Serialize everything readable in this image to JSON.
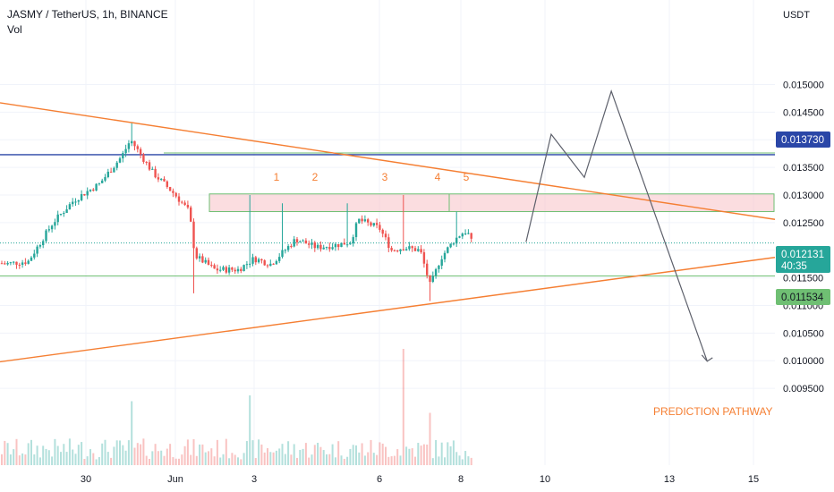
{
  "legend": {
    "symbol": "JASMY / TetherUS, 1h, BINANCE",
    "volume": "Vol"
  },
  "axis": {
    "currency": "USDT"
  },
  "badges": {
    "resistance": "0.013730",
    "last_price": "0.012131",
    "countdown": "40:35",
    "support": "0.011534"
  },
  "annotations": {
    "touches": [
      "1",
      "2",
      "3",
      "4",
      "5"
    ],
    "prediction_label": "PREDICTION PATHWAY"
  },
  "colors": {
    "up": "#26a69a",
    "down": "#ef5350",
    "trendline": "#f57f33",
    "resistance": "#2a46a7",
    "support": "#6fbf73",
    "zone": "#f8c7cb",
    "path": "#5d606b",
    "annotation": "#f57f33"
  },
  "chart_data": {
    "type": "candlestick",
    "title": "JASMY / TetherUS, 1h, BINANCE",
    "y_unit": "USDT",
    "y_ticks": [
      "0.015000",
      "0.014500",
      "0.014000",
      "0.013500",
      "0.013000",
      "0.012500",
      "0.012000",
      "0.011500",
      "0.011000",
      "0.010500",
      "0.010000",
      "0.009500"
    ],
    "x_ticks": [
      "30",
      "Jun",
      "3",
      "6",
      "8",
      "10",
      "13",
      "15"
    ],
    "ylim": [
      0.00925,
      0.0158
    ],
    "horizontal_levels": {
      "resistance": 0.01373,
      "support": 0.011534,
      "last_price": 0.012131
    },
    "supply_zone": {
      "low": 0.0127,
      "high": 0.01302
    },
    "trendlines": [
      {
        "name": "descending",
        "from": {
          "day": 27.0,
          "price": 0.01467
        },
        "to": {
          "day": 16.3,
          "price": 0.01247
        }
      },
      {
        "name": "ascending",
        "from": {
          "day": 27.0,
          "price": 0.00998
        },
        "to": {
          "day": 16.3,
          "price": 0.01195
        }
      }
    ],
    "prediction_path": [
      {
        "day": 9.55,
        "price": 0.01215
      },
      {
        "day": 10.15,
        "price": 0.0141
      },
      {
        "day": 10.95,
        "price": 0.01332
      },
      {
        "day": 11.6,
        "price": 0.01488
      },
      {
        "day": 13.9,
        "price": 0.00999
      }
    ],
    "price_path": [
      {
        "day": 27.0,
        "price": 0.0121
      },
      {
        "day": 28.0,
        "price": 0.01175
      },
      {
        "day": 28.6,
        "price": 0.0118
      },
      {
        "day": 29.2,
        "price": 0.0125
      },
      {
        "day": 29.7,
        "price": 0.0129
      },
      {
        "day": 30.3,
        "price": 0.0132
      },
      {
        "day": 30.8,
        "price": 0.0137
      },
      {
        "day": 31.0,
        "price": 0.014
      },
      {
        "day": 31.5,
        "price": 0.0134
      },
      {
        "day": 32.0,
        "price": 0.013
      },
      {
        "day": 32.35,
        "price": 0.0127
      },
      {
        "day": 32.5,
        "price": 0.0119
      },
      {
        "day": 33.0,
        "price": 0.01165
      },
      {
        "day": 33.6,
        "price": 0.01165
      },
      {
        "day": 34.0,
        "price": 0.01185
      },
      {
        "day": 34.4,
        "price": 0.01175
      },
      {
        "day": 35.0,
        "price": 0.0122
      },
      {
        "day": 35.5,
        "price": 0.01205
      },
      {
        "day": 36.0,
        "price": 0.0121
      },
      {
        "day": 36.3,
        "price": 0.01215
      },
      {
        "day": 36.5,
        "price": 0.01255
      },
      {
        "day": 37.0,
        "price": 0.0124
      },
      {
        "day": 37.3,
        "price": 0.012
      },
      {
        "day": 37.6,
        "price": 0.01205
      },
      {
        "day": 38.0,
        "price": 0.012
      },
      {
        "day": 38.25,
        "price": 0.01135
      },
      {
        "day": 38.5,
        "price": 0.01185
      },
      {
        "day": 38.8,
        "price": 0.01215
      },
      {
        "day": 39.0,
        "price": 0.0123
      },
      {
        "day": 39.15,
        "price": 0.01235
      },
      {
        "day": 39.3,
        "price": 0.01205
      }
    ],
    "touch_highs": [
      {
        "label": "1",
        "day": 33.9,
        "price": 0.013
      },
      {
        "label": "2",
        "day": 34.7,
        "price": 0.01285
      },
      {
        "label": "3",
        "day": 36.2,
        "price": 0.01285
      },
      {
        "label": "4",
        "day": 37.6,
        "price": 0.013
      },
      {
        "label": "5",
        "day": 38.9,
        "price": 0.0127
      }
    ],
    "volume_ylim": [
      0,
      1
    ],
    "volume_spikes": [
      {
        "day": 31.0,
        "rel": 0.55
      },
      {
        "day": 33.9,
        "rel": 0.6
      },
      {
        "day": 37.6,
        "rel": 1.0
      },
      {
        "day": 38.25,
        "rel": 0.45
      }
    ]
  }
}
